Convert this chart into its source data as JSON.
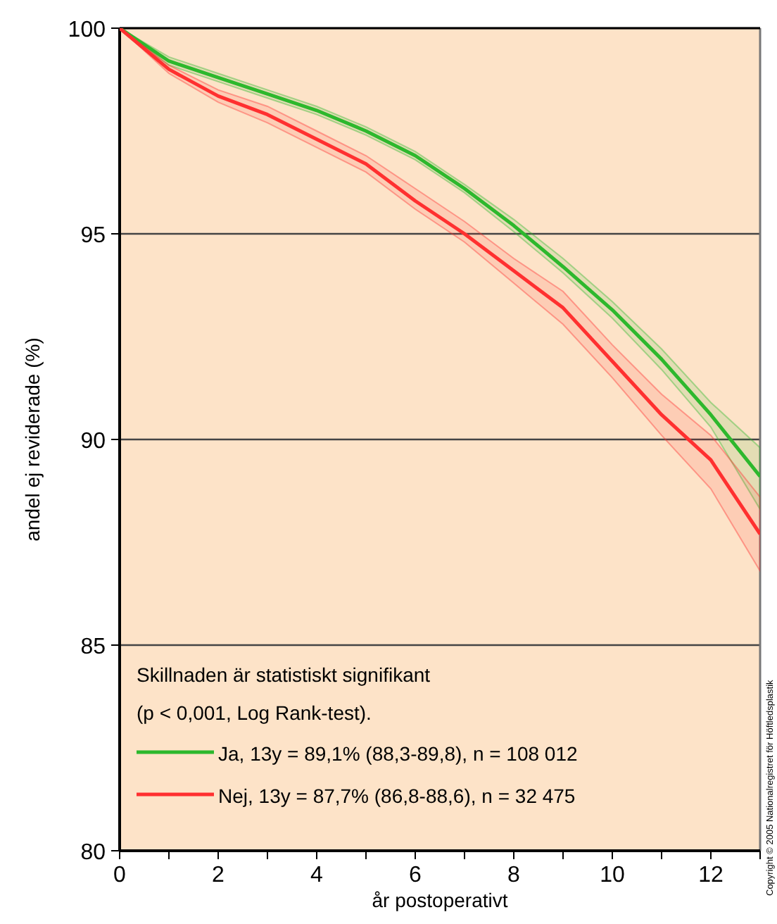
{
  "chart_data": {
    "type": "line",
    "xlabel": "år postoperativt",
    "ylabel": "andel ej reviderade (%)",
    "x": [
      0,
      1,
      2,
      3,
      4,
      5,
      6,
      7,
      8,
      9,
      10,
      11,
      12,
      13
    ],
    "series": [
      {
        "name": "Ja, 13y = 89,1% (88,3-89,8), n = 108 012",
        "color": "#2db82d",
        "values": [
          100,
          99.2,
          98.8,
          98.4,
          98.0,
          97.5,
          96.9,
          96.1,
          95.2,
          94.2,
          93.15,
          91.95,
          90.6,
          89.1
        ],
        "lower": [
          100,
          99.1,
          98.7,
          98.3,
          97.9,
          97.4,
          96.8,
          96.0,
          95.05,
          94.05,
          92.95,
          91.7,
          90.3,
          88.3
        ],
        "upper": [
          100,
          99.3,
          98.9,
          98.5,
          98.1,
          97.6,
          97.0,
          96.2,
          95.35,
          94.4,
          93.35,
          92.2,
          90.9,
          89.8
        ]
      },
      {
        "name": "Nej, 13y = 87,7% (86,8-88,6), n = 32 475",
        "color": "#ff3030",
        "values": [
          100,
          99.0,
          98.35,
          97.9,
          97.3,
          96.7,
          95.8,
          95.0,
          94.1,
          93.2,
          91.9,
          90.6,
          89.5,
          87.7
        ],
        "lower": [
          100,
          98.9,
          98.2,
          97.7,
          97.1,
          96.5,
          95.6,
          94.8,
          93.8,
          92.8,
          91.5,
          90.1,
          88.8,
          86.8
        ],
        "upper": [
          100,
          99.1,
          98.5,
          98.1,
          97.5,
          96.9,
          96.1,
          95.3,
          94.4,
          93.6,
          92.3,
          91.1,
          90.1,
          88.6
        ]
      }
    ],
    "xlim": [
      0,
      13
    ],
    "xticks": [
      0,
      {
        "value": 1,
        "label": null
      },
      2,
      {
        "value": 3,
        "label": null
      },
      4,
      {
        "value": 5,
        "label": null
      },
      6,
      {
        "value": 7,
        "label": null
      },
      8,
      {
        "value": 9,
        "label": null
      },
      10,
      {
        "value": 11,
        "label": null
      },
      12,
      {
        "value": 13,
        "label": null
      }
    ],
    "ylim": [
      80,
      100
    ],
    "yticks": [
      80,
      85,
      90,
      95,
      100
    ],
    "grid": "y",
    "legend": "bottom left",
    "marker": "none",
    "line_style": "solid",
    "annotations": [
      "Skillnaden är statistiskt signifikant\n(p < 0,001, Log Rank-test).",
      "Copyright © 2005 Nationalregistret för Höftledsplastik"
    ]
  }
}
